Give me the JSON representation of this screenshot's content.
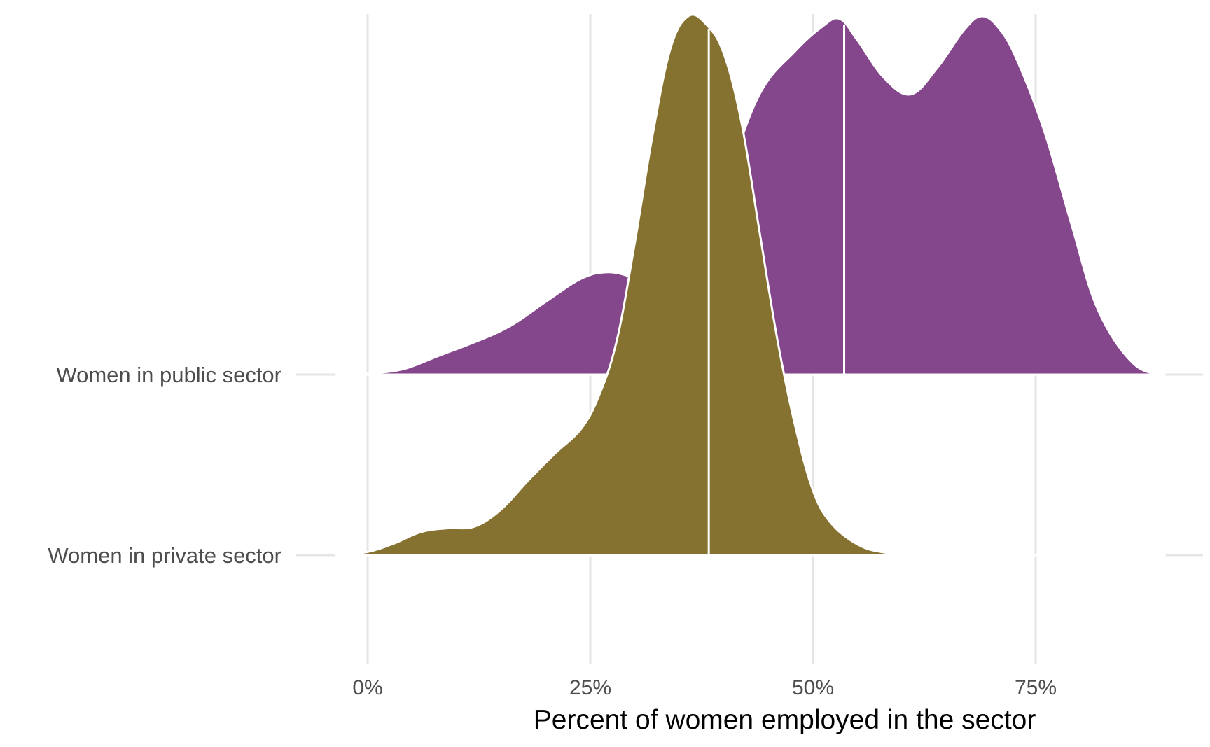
{
  "chart_data": {
    "type": "ridgeline",
    "title": "",
    "xlabel": "Percent of women employed in the sector",
    "ylabel": "",
    "xlim": [
      -3.5,
      94
    ],
    "x_ticks": [
      {
        "value": 0,
        "label": "0%"
      },
      {
        "value": 25,
        "label": "25%"
      },
      {
        "value": 50,
        "label": "50%"
      },
      {
        "value": 75,
        "label": "75%"
      }
    ],
    "grid": true,
    "legend": "none",
    "series": [
      {
        "category": "Women in private sector",
        "color": "#857130",
        "median": 38.3,
        "density_x": [
          -3.5,
          0,
          3,
          6,
          9,
          12,
          15,
          18,
          21,
          24,
          26,
          28,
          30,
          32,
          34,
          36,
          38,
          40,
          42,
          44,
          46,
          48,
          50,
          52,
          55,
          58,
          62,
          70,
          80,
          89.5
        ],
        "density_y": [
          0,
          0.006,
          0.022,
          0.043,
          0.05,
          0.053,
          0.085,
          0.138,
          0.188,
          0.235,
          0.297,
          0.4,
          0.58,
          0.78,
          0.94,
          1.0,
          0.985,
          0.93,
          0.8,
          0.6,
          0.4,
          0.24,
          0.12,
          0.06,
          0.02,
          0.005,
          0.001,
          0,
          0,
          0
        ]
      },
      {
        "category": "Women in public sector",
        "color": "#85478b",
        "median": 53.5,
        "density_x": [
          -3.5,
          0,
          4,
          8,
          12,
          16,
          20,
          24,
          27,
          30,
          33,
          36,
          40,
          44,
          48,
          51,
          53,
          55,
          58,
          61,
          64,
          67,
          69,
          71,
          73,
          76,
          79,
          82,
          86,
          89.5
        ],
        "density_y": [
          0,
          0.002,
          0.01,
          0.035,
          0.06,
          0.09,
          0.135,
          0.178,
          0.19,
          0.18,
          0.17,
          0.21,
          0.35,
          0.52,
          0.6,
          0.645,
          0.66,
          0.62,
          0.55,
          0.52,
          0.57,
          0.64,
          0.665,
          0.64,
          0.58,
          0.45,
          0.28,
          0.12,
          0.02,
          0
        ]
      }
    ]
  }
}
